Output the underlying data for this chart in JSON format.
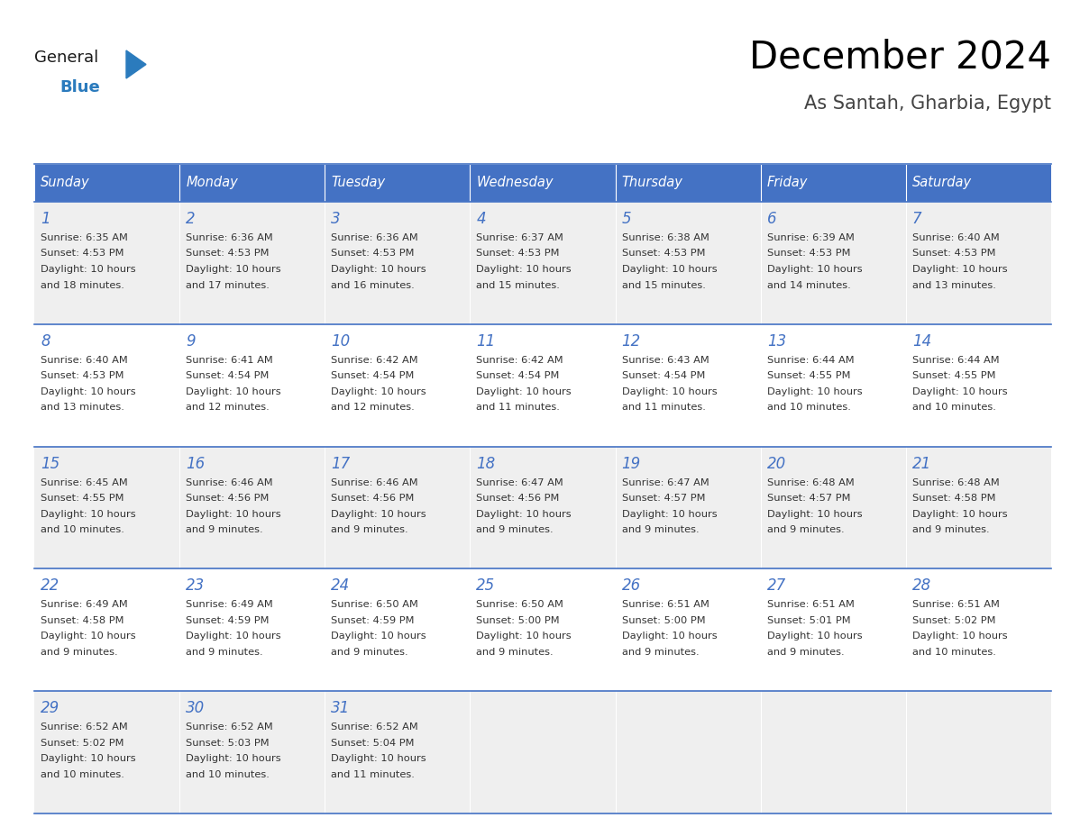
{
  "title": "December 2024",
  "subtitle": "As Santah, Gharbia, Egypt",
  "days_of_week": [
    "Sunday",
    "Monday",
    "Tuesday",
    "Wednesday",
    "Thursday",
    "Friday",
    "Saturday"
  ],
  "header_bg": "#4472C4",
  "header_text_color": "#FFFFFF",
  "cell_bg_odd": "#EFEFEF",
  "cell_bg_even": "#FFFFFF",
  "line_color": "#4472C4",
  "day_num_color": "#4472C4",
  "cell_text_color": "#333333",
  "weeks": [
    [
      {
        "day": 1,
        "sunrise": "6:35 AM",
        "sunset": "4:53 PM",
        "daylight_hours": 10,
        "daylight_minutes": 18
      },
      {
        "day": 2,
        "sunrise": "6:36 AM",
        "sunset": "4:53 PM",
        "daylight_hours": 10,
        "daylight_minutes": 17
      },
      {
        "day": 3,
        "sunrise": "6:36 AM",
        "sunset": "4:53 PM",
        "daylight_hours": 10,
        "daylight_minutes": 16
      },
      {
        "day": 4,
        "sunrise": "6:37 AM",
        "sunset": "4:53 PM",
        "daylight_hours": 10,
        "daylight_minutes": 15
      },
      {
        "day": 5,
        "sunrise": "6:38 AM",
        "sunset": "4:53 PM",
        "daylight_hours": 10,
        "daylight_minutes": 15
      },
      {
        "day": 6,
        "sunrise": "6:39 AM",
        "sunset": "4:53 PM",
        "daylight_hours": 10,
        "daylight_minutes": 14
      },
      {
        "day": 7,
        "sunrise": "6:40 AM",
        "sunset": "4:53 PM",
        "daylight_hours": 10,
        "daylight_minutes": 13
      }
    ],
    [
      {
        "day": 8,
        "sunrise": "6:40 AM",
        "sunset": "4:53 PM",
        "daylight_hours": 10,
        "daylight_minutes": 13
      },
      {
        "day": 9,
        "sunrise": "6:41 AM",
        "sunset": "4:54 PM",
        "daylight_hours": 10,
        "daylight_minutes": 12
      },
      {
        "day": 10,
        "sunrise": "6:42 AM",
        "sunset": "4:54 PM",
        "daylight_hours": 10,
        "daylight_minutes": 12
      },
      {
        "day": 11,
        "sunrise": "6:42 AM",
        "sunset": "4:54 PM",
        "daylight_hours": 10,
        "daylight_minutes": 11
      },
      {
        "day": 12,
        "sunrise": "6:43 AM",
        "sunset": "4:54 PM",
        "daylight_hours": 10,
        "daylight_minutes": 11
      },
      {
        "day": 13,
        "sunrise": "6:44 AM",
        "sunset": "4:55 PM",
        "daylight_hours": 10,
        "daylight_minutes": 10
      },
      {
        "day": 14,
        "sunrise": "6:44 AM",
        "sunset": "4:55 PM",
        "daylight_hours": 10,
        "daylight_minutes": 10
      }
    ],
    [
      {
        "day": 15,
        "sunrise": "6:45 AM",
        "sunset": "4:55 PM",
        "daylight_hours": 10,
        "daylight_minutes": 10
      },
      {
        "day": 16,
        "sunrise": "6:46 AM",
        "sunset": "4:56 PM",
        "daylight_hours": 10,
        "daylight_minutes": 9
      },
      {
        "day": 17,
        "sunrise": "6:46 AM",
        "sunset": "4:56 PM",
        "daylight_hours": 10,
        "daylight_minutes": 9
      },
      {
        "day": 18,
        "sunrise": "6:47 AM",
        "sunset": "4:56 PM",
        "daylight_hours": 10,
        "daylight_minutes": 9
      },
      {
        "day": 19,
        "sunrise": "6:47 AM",
        "sunset": "4:57 PM",
        "daylight_hours": 10,
        "daylight_minutes": 9
      },
      {
        "day": 20,
        "sunrise": "6:48 AM",
        "sunset": "4:57 PM",
        "daylight_hours": 10,
        "daylight_minutes": 9
      },
      {
        "day": 21,
        "sunrise": "6:48 AM",
        "sunset": "4:58 PM",
        "daylight_hours": 10,
        "daylight_minutes": 9
      }
    ],
    [
      {
        "day": 22,
        "sunrise": "6:49 AM",
        "sunset": "4:58 PM",
        "daylight_hours": 10,
        "daylight_minutes": 9
      },
      {
        "day": 23,
        "sunrise": "6:49 AM",
        "sunset": "4:59 PM",
        "daylight_hours": 10,
        "daylight_minutes": 9
      },
      {
        "day": 24,
        "sunrise": "6:50 AM",
        "sunset": "4:59 PM",
        "daylight_hours": 10,
        "daylight_minutes": 9
      },
      {
        "day": 25,
        "sunrise": "6:50 AM",
        "sunset": "5:00 PM",
        "daylight_hours": 10,
        "daylight_minutes": 9
      },
      {
        "day": 26,
        "sunrise": "6:51 AM",
        "sunset": "5:00 PM",
        "daylight_hours": 10,
        "daylight_minutes": 9
      },
      {
        "day": 27,
        "sunrise": "6:51 AM",
        "sunset": "5:01 PM",
        "daylight_hours": 10,
        "daylight_minutes": 9
      },
      {
        "day": 28,
        "sunrise": "6:51 AM",
        "sunset": "5:02 PM",
        "daylight_hours": 10,
        "daylight_minutes": 10
      }
    ],
    [
      {
        "day": 29,
        "sunrise": "6:52 AM",
        "sunset": "5:02 PM",
        "daylight_hours": 10,
        "daylight_minutes": 10
      },
      {
        "day": 30,
        "sunrise": "6:52 AM",
        "sunset": "5:03 PM",
        "daylight_hours": 10,
        "daylight_minutes": 10
      },
      {
        "day": 31,
        "sunrise": "6:52 AM",
        "sunset": "5:04 PM",
        "daylight_hours": 10,
        "daylight_minutes": 11
      },
      null,
      null,
      null,
      null
    ]
  ],
  "logo_general_color": "#1a1a1a",
  "logo_blue_color": "#2B7BBD",
  "figsize": [
    11.88,
    9.18
  ],
  "dpi": 100
}
